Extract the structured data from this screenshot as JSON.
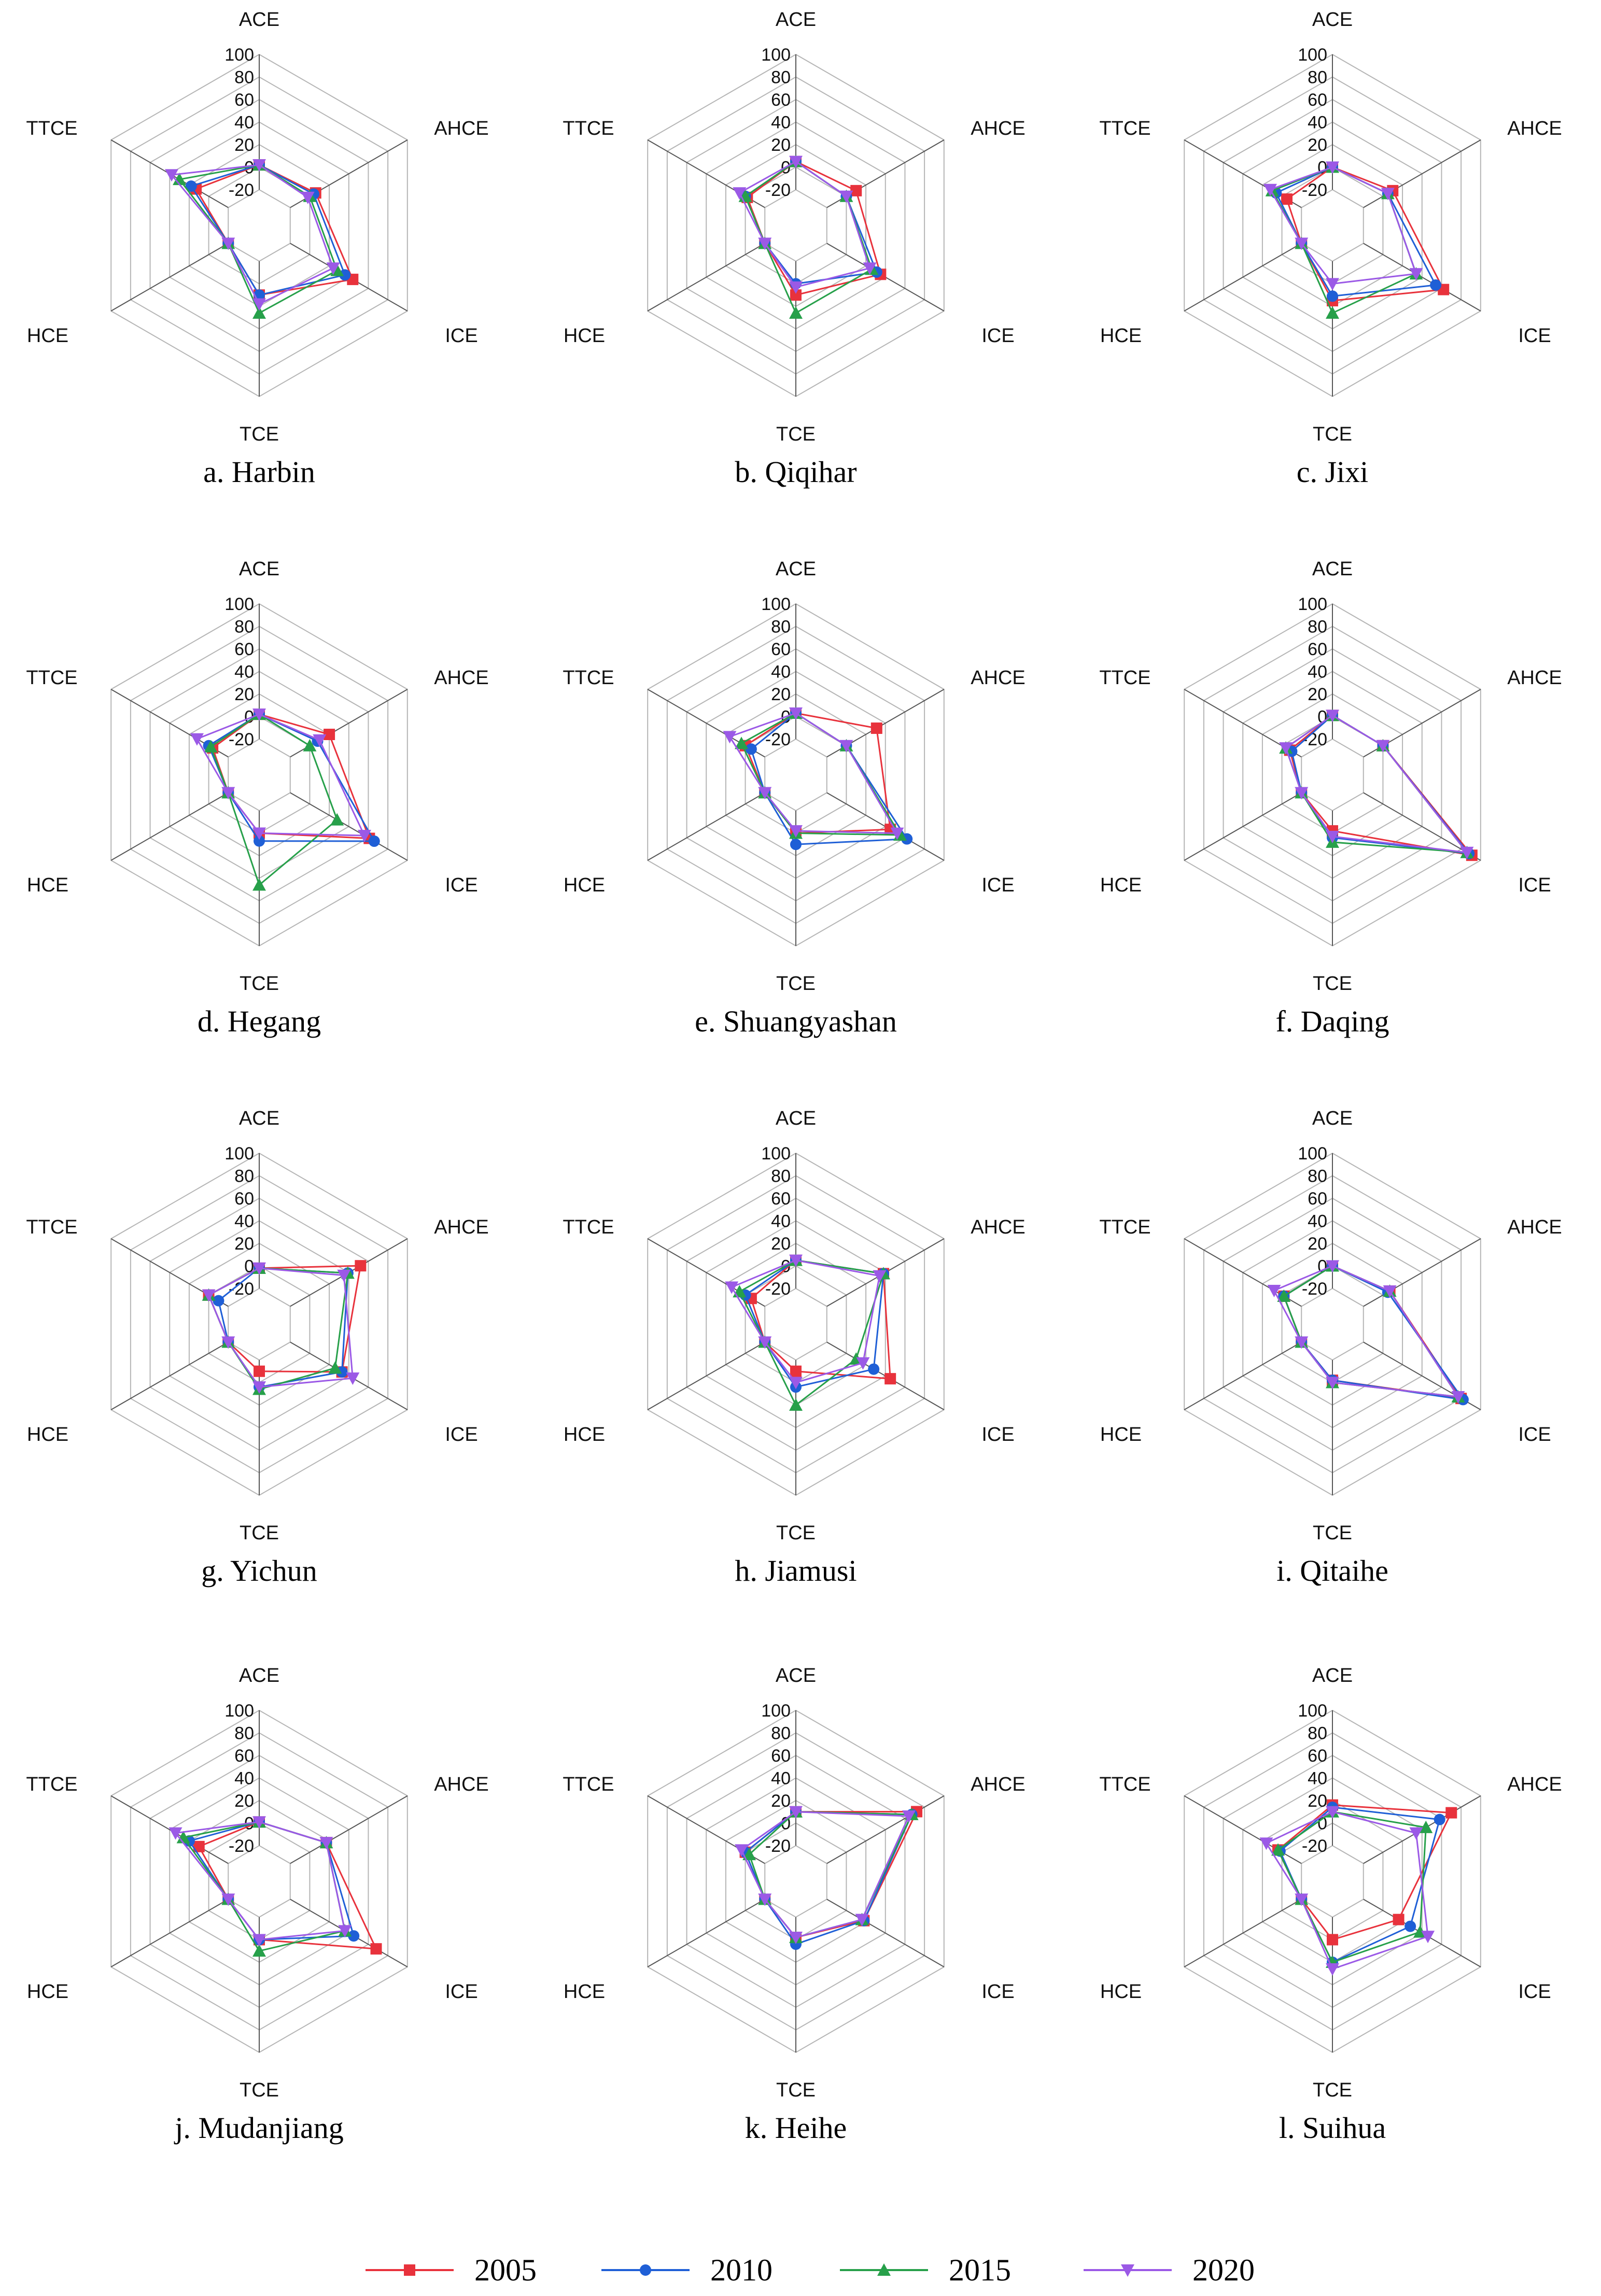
{
  "chart_data": [
    {
      "id": "a",
      "type": "radar",
      "caption": "a. Harbin",
      "axes": [
        "ACE",
        "AHCE",
        "ICE",
        "TCE",
        "HCE",
        "TTCE"
      ],
      "rticks": [
        "100",
        "80",
        "60",
        "40",
        "20",
        "0",
        "-20"
      ],
      "rrange": [
        -20,
        100
      ],
      "series": [
        {
          "name": "2005",
          "values": [
            2,
            6,
            44,
            10,
            -20,
            13
          ]
        },
        {
          "name": "2010",
          "values": [
            2,
            4,
            36,
            10,
            -20,
            18
          ]
        },
        {
          "name": "2015",
          "values": [
            2,
            0,
            28,
            26,
            -20,
            30
          ]
        },
        {
          "name": "2020",
          "values": [
            2,
            -2,
            24,
            18,
            -20,
            38
          ]
        }
      ]
    },
    {
      "id": "b",
      "type": "radar",
      "caption": "b. Qiqihar",
      "axes": [
        "ACE",
        "AHCE",
        "ICE",
        "TCE",
        "HCE",
        "TTCE"
      ],
      "rticks": [
        "100",
        "80",
        "60",
        "40",
        "20",
        "0",
        "-20"
      ],
      "rrange": [
        -20,
        100
      ],
      "series": [
        {
          "name": "2005",
          "values": [
            5,
            10,
            35,
            10,
            -20,
            -2
          ]
        },
        {
          "name": "2010",
          "values": [
            5,
            0,
            31,
            0,
            -20,
            0
          ]
        },
        {
          "name": "2015",
          "values": [
            5,
            0,
            26,
            26,
            -20,
            0
          ]
        },
        {
          "name": "2020",
          "values": [
            5,
            0,
            24,
            3,
            -20,
            6
          ]
        }
      ]
    },
    {
      "id": "c",
      "type": "radar",
      "caption": "c. Jixi",
      "axes": [
        "ACE",
        "AHCE",
        "ICE",
        "TCE",
        "HCE",
        "TTCE"
      ],
      "rticks": [
        "100",
        "80",
        "60",
        "40",
        "20",
        "0",
        "-20"
      ],
      "rrange": [
        -20,
        100
      ],
      "series": [
        {
          "name": "2005",
          "values": [
            0,
            10,
            62,
            15,
            -20,
            -5
          ]
        },
        {
          "name": "2010",
          "values": [
            0,
            5,
            54,
            11,
            -20,
            6
          ]
        },
        {
          "name": "2015",
          "values": [
            0,
            5,
            34,
            26,
            -20,
            10
          ]
        },
        {
          "name": "2020",
          "values": [
            0,
            5,
            34,
            0,
            -20,
            12
          ]
        }
      ]
    },
    {
      "id": "d",
      "type": "radar",
      "caption": "d. Hegang",
      "axes": [
        "ACE",
        "AHCE",
        "ICE",
        "TCE",
        "HCE",
        "TTCE"
      ],
      "rticks": [
        "100",
        "80",
        "60",
        "40",
        "20",
        "0",
        "-20"
      ],
      "rrange": [
        -20,
        100
      ],
      "series": [
        {
          "name": "2005",
          "values": [
            2,
            20,
            61,
            0,
            -20,
            -4
          ]
        },
        {
          "name": "2010",
          "values": [
            2,
            8,
            66,
            7,
            -20,
            0
          ]
        },
        {
          "name": "2015",
          "values": [
            2,
            0,
            28,
            46,
            -20,
            -2
          ]
        },
        {
          "name": "2020",
          "values": [
            2,
            10,
            56,
            0,
            -20,
            12
          ]
        }
      ]
    },
    {
      "id": "e",
      "type": "radar",
      "caption": "e. Shuangyashan",
      "axes": [
        "ACE",
        "AHCE",
        "ICE",
        "TCE",
        "HCE",
        "TTCE"
      ],
      "rticks": [
        "100",
        "80",
        "60",
        "40",
        "20",
        "0",
        "-20"
      ],
      "rrange": [
        -20,
        100
      ],
      "series": [
        {
          "name": "2005",
          "values": [
            3,
            31,
            45,
            0,
            -20,
            0
          ]
        },
        {
          "name": "2010",
          "values": [
            3,
            0,
            62,
            10,
            -20,
            -6
          ]
        },
        {
          "name": "2015",
          "values": [
            3,
            0,
            55,
            0,
            -20,
            4
          ]
        },
        {
          "name": "2020",
          "values": [
            3,
            0,
            52,
            -2,
            -20,
            16
          ]
        }
      ]
    },
    {
      "id": "f",
      "type": "radar",
      "caption": "f. Daqing",
      "axes": [
        "ACE",
        "AHCE",
        "ICE",
        "TCE",
        "HCE",
        "TTCE"
      ],
      "rticks": [
        "100",
        "80",
        "60",
        "40",
        "20",
        "0",
        "-20"
      ],
      "rrange": [
        -20,
        100
      ],
      "series": [
        {
          "name": "2005",
          "values": [
            1,
            0,
            91,
            -2,
            -20,
            -8
          ]
        },
        {
          "name": "2010",
          "values": [
            1,
            0,
            88,
            4,
            -20,
            -10
          ]
        },
        {
          "name": "2015",
          "values": [
            1,
            0,
            86,
            8,
            -20,
            -4
          ]
        },
        {
          "name": "2020",
          "values": [
            1,
            0,
            86,
            3,
            -20,
            -4
          ]
        }
      ]
    },
    {
      "id": "g",
      "type": "radar",
      "caption": "g. Yichun",
      "axes": [
        "ACE",
        "AHCE",
        "ICE",
        "TCE",
        "HCE",
        "TTCE"
      ],
      "rticks": [
        "100",
        "80",
        "60",
        "40",
        "20",
        "0",
        "-20"
      ],
      "rrange": [
        -20,
        100
      ],
      "series": [
        {
          "name": "2005",
          "values": [
            -2,
            52,
            33,
            -10,
            -20,
            0
          ]
        },
        {
          "name": "2010",
          "values": [
            -2,
            39,
            33,
            4,
            -20,
            -10
          ]
        },
        {
          "name": "2015",
          "values": [
            -2,
            39,
            26,
            6,
            -20,
            0
          ]
        },
        {
          "name": "2020",
          "values": [
            -2,
            35,
            44,
            4,
            -20,
            0
          ]
        }
      ]
    },
    {
      "id": "h",
      "type": "radar",
      "caption": "h. Jiamusi",
      "axes": [
        "ACE",
        "AHCE",
        "ICE",
        "TCE",
        "HCE",
        "TTCE"
      ],
      "rticks": [
        "100",
        "80",
        "60",
        "40",
        "20",
        "0",
        "-20"
      ],
      "rrange": [
        -20,
        100
      ],
      "series": [
        {
          "name": "2005",
          "values": [
            5,
            38,
            45,
            -10,
            -20,
            -6
          ]
        },
        {
          "name": "2010",
          "values": [
            5,
            38,
            28,
            4,
            -20,
            0
          ]
        },
        {
          "name": "2015",
          "values": [
            5,
            38,
            10,
            20,
            -20,
            6
          ]
        },
        {
          "name": "2020",
          "values": [
            5,
            34,
            17,
            0,
            -20,
            14
          ]
        }
      ]
    },
    {
      "id": "i",
      "type": "radar",
      "caption": "i. Qitaihe",
      "axes": [
        "ACE",
        "AHCE",
        "ICE",
        "TCE",
        "HCE",
        "TTCE"
      ],
      "rticks": [
        "100",
        "80",
        "60",
        "40",
        "20",
        "0",
        "-20"
      ],
      "rrange": [
        -20,
        100
      ],
      "series": [
        {
          "name": "2005",
          "values": [
            0,
            7,
            80,
            -2,
            -20,
            -2
          ]
        },
        {
          "name": "2010",
          "values": [
            0,
            5,
            82,
            -2,
            -20,
            -2
          ]
        },
        {
          "name": "2015",
          "values": [
            0,
            7,
            77,
            0,
            -20,
            -2
          ]
        },
        {
          "name": "2020",
          "values": [
            0,
            7,
            77,
            0,
            -20,
            8
          ]
        }
      ]
    },
    {
      "id": "j",
      "type": "radar",
      "caption": "j. Mudanjiang",
      "axes": [
        "ACE",
        "AHCE",
        "ICE",
        "TCE",
        "HCE",
        "TTCE"
      ],
      "rticks": [
        "100",
        "80",
        "60",
        "40",
        "20",
        "0",
        "-20"
      ],
      "rrange": [
        -20,
        100
      ],
      "series": [
        {
          "name": "2005",
          "values": [
            1,
            17,
            68,
            0,
            -20,
            10
          ]
        },
        {
          "name": "2010",
          "values": [
            1,
            17,
            45,
            0,
            -20,
            20
          ]
        },
        {
          "name": "2015",
          "values": [
            1,
            17,
            36,
            10,
            -20,
            26
          ]
        },
        {
          "name": "2020",
          "values": [
            1,
            17,
            36,
            0,
            -20,
            34
          ]
        }
      ]
    },
    {
      "id": "k",
      "type": "radar",
      "caption": "k. Heihe",
      "axes": [
        "ACE",
        "AHCE",
        "ICE",
        "TCE",
        "HCE",
        "TTCE"
      ],
      "rticks": [
        "100",
        "80",
        "60",
        "40",
        "20",
        "0",
        "-20"
      ],
      "rrange": [
        -20,
        100
      ],
      "series": [
        {
          "name": "2005",
          "values": [
            10,
            72,
            18,
            -2,
            -20,
            0
          ]
        },
        {
          "name": "2010",
          "values": [
            10,
            67,
            18,
            4,
            -20,
            0
          ]
        },
        {
          "name": "2015",
          "values": [
            10,
            67,
            16,
            -2,
            -20,
            -4
          ]
        },
        {
          "name": "2020",
          "values": [
            10,
            64,
            16,
            -2,
            -20,
            4
          ]
        }
      ]
    },
    {
      "id": "l",
      "type": "radar",
      "caption": "l. Suihua",
      "axes": [
        "ACE",
        "AHCE",
        "ICE",
        "TCE",
        "HCE",
        "TTCE"
      ],
      "rticks": [
        "100",
        "80",
        "60",
        "40",
        "20",
        "0",
        "-20"
      ],
      "rrange": [
        -20,
        100
      ],
      "series": [
        {
          "name": "2005",
          "values": [
            16,
            70,
            16,
            0,
            -20,
            4
          ]
        },
        {
          "name": "2010",
          "values": [
            14,
            58,
            28,
            20,
            -20,
            2
          ]
        },
        {
          "name": "2015",
          "values": [
            10,
            44,
            38,
            20,
            -20,
            4
          ]
        },
        {
          "name": "2020",
          "values": [
            10,
            34,
            46,
            26,
            -20,
            16
          ]
        }
      ]
    }
  ],
  "legend": [
    {
      "label": "2005",
      "color": "#e8323c",
      "marker": "square"
    },
    {
      "label": "2010",
      "color": "#1f5fd6",
      "marker": "circle"
    },
    {
      "label": "2015",
      "color": "#27a04a",
      "marker": "triangle-up"
    },
    {
      "label": "2020",
      "color": "#9b59e6",
      "marker": "triangle-down"
    }
  ]
}
